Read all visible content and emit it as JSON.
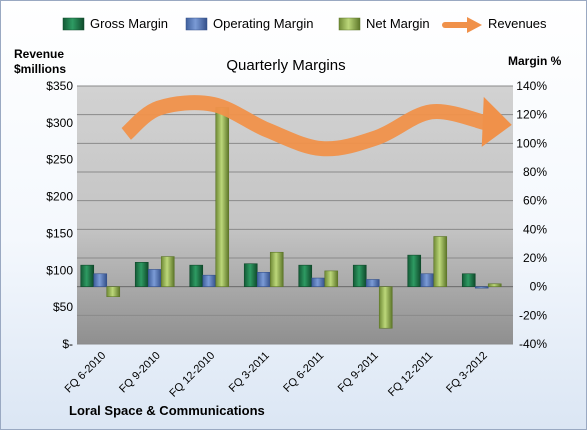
{
  "chart_data": {
    "type": "bar",
    "title": "Quarterly Margins",
    "company": "Loral Space & Communications",
    "y_left_label": [
      "Revenue",
      "$millions"
    ],
    "y_right_label": "Margin %",
    "categories": [
      "FQ 6-2010",
      "FQ 9-2010",
      "FQ 12-2010",
      "FQ 3-2011",
      "FQ 6-2011",
      "FQ 9-2011",
      "FQ 12-2011",
      "FQ 3-2012"
    ],
    "y_left_ticks": [
      "$-",
      "$50",
      "$100",
      "$150",
      "$200",
      "$250",
      "$300",
      "$350"
    ],
    "y_left_range": [
      0,
      350
    ],
    "y_right_ticks": [
      "-40%",
      "-20%",
      "0%",
      "20%",
      "40%",
      "60%",
      "80%",
      "100%",
      "120%",
      "140%"
    ],
    "y_right_range": [
      -40,
      140
    ],
    "series": [
      {
        "name": "Gross Margin",
        "axis": "right",
        "color": "#1e7a4c",
        "values": [
          15,
          17,
          15,
          16,
          15,
          15,
          22,
          9
        ]
      },
      {
        "name": "Operating Margin",
        "axis": "right",
        "color": "#5b7fc0",
        "values": [
          9,
          12,
          8,
          10,
          6,
          5,
          9,
          -1
        ]
      },
      {
        "name": "Net Margin",
        "axis": "right",
        "color": "#9bbb59",
        "values": [
          -7,
          21,
          125,
          24,
          11,
          -29,
          35,
          2
        ]
      },
      {
        "name": "Revenues",
        "axis": "left",
        "color": "#f0914a",
        "style": "curved-arrow",
        "values": [
          285,
          320,
          325,
          290,
          265,
          280,
          315,
          300
        ]
      }
    ],
    "legend_position": "top",
    "grid": true
  }
}
